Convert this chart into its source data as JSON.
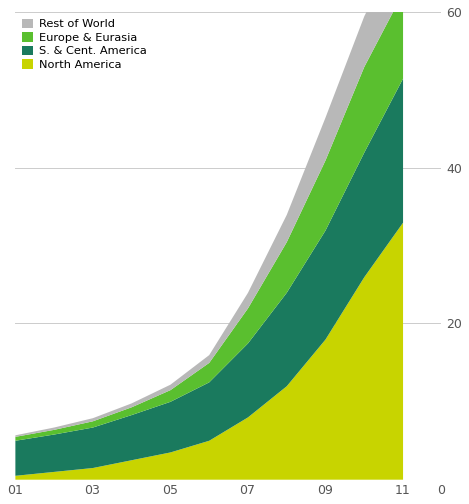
{
  "years": [
    2001,
    2002,
    2003,
    2004,
    2005,
    2006,
    2007,
    2008,
    2009,
    2010,
    2011
  ],
  "north_america": [
    0.5,
    1.0,
    1.5,
    2.5,
    3.5,
    5.0,
    8.0,
    12.0,
    18.0,
    26.0,
    33.0
  ],
  "s_cent_america": [
    4.5,
    4.8,
    5.2,
    5.8,
    6.5,
    7.5,
    9.5,
    12.0,
    14.0,
    16.0,
    18.5
  ],
  "europe_eurasia": [
    0.5,
    0.6,
    0.8,
    1.0,
    1.5,
    2.5,
    4.5,
    6.5,
    9.0,
    11.0,
    11.0
  ],
  "rest_of_world": [
    0.2,
    0.3,
    0.4,
    0.5,
    0.7,
    1.0,
    2.0,
    3.5,
    5.5,
    6.5,
    7.0
  ],
  "colors": {
    "north_america": "#c8d400",
    "s_cent_america": "#1a7a5e",
    "europe_eurasia": "#5abf2f",
    "rest_of_world": "#b8b8b8"
  },
  "legend_labels": [
    "Rest of World",
    "Europe & Eurasia",
    "S. & Cent. America",
    "North America"
  ],
  "ylim": [
    0,
    60
  ],
  "yticks": [
    20,
    40,
    60
  ],
  "xtick_labels": [
    "01",
    "03",
    "05",
    "07",
    "09",
    "11",
    "0"
  ],
  "xtick_positions": [
    2001,
    2003,
    2005,
    2007,
    2009,
    2011,
    2012
  ],
  "background_color": "#ffffff"
}
